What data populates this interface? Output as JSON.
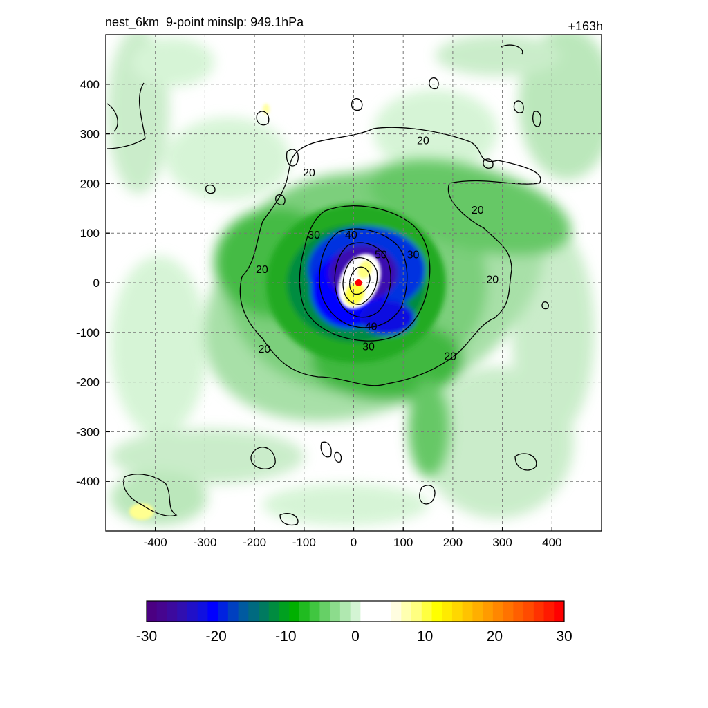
{
  "title_left": "nest_6km  9-point minslp: 949.1hPa",
  "title_right": "+163h",
  "chart_data": {
    "type": "heatmap",
    "title": "nest_6km  9-point minslp: 949.1hPa",
    "time_label": "+163h",
    "xlim": [
      -500,
      500
    ],
    "ylim": [
      -500,
      500
    ],
    "x_ticks": [
      -400,
      -300,
      -200,
      -100,
      0,
      100,
      200,
      300,
      400
    ],
    "y_ticks": [
      400,
      300,
      200,
      100,
      0,
      -100,
      -200,
      -300,
      -400
    ],
    "grid": true,
    "center_marker": {
      "x": 10,
      "y": 0,
      "color": "#ff0000"
    },
    "contour_labels": [
      {
        "text": "20",
        "x": 140,
        "y": 285
      },
      {
        "text": "20",
        "x": -90,
        "y": 220
      },
      {
        "text": "20",
        "x": 250,
        "y": 145
      },
      {
        "text": "20",
        "x": 280,
        "y": 5
      },
      {
        "text": "20",
        "x": -185,
        "y": 25
      },
      {
        "text": "20",
        "x": -180,
        "y": -135
      },
      {
        "text": "20",
        "x": 195,
        "y": -150
      },
      {
        "text": "30",
        "x": -80,
        "y": 95
      },
      {
        "text": "30",
        "x": 120,
        "y": 55
      },
      {
        "text": "30",
        "x": 30,
        "y": -130
      },
      {
        "text": "40",
        "x": -5,
        "y": 95
      },
      {
        "text": "40",
        "x": 35,
        "y": -90
      },
      {
        "text": "50",
        "x": 55,
        "y": 55
      }
    ],
    "colorbar": {
      "ticks": [
        -30,
        -20,
        -10,
        0,
        10,
        20,
        30
      ],
      "range": [
        -30,
        30
      ],
      "colors": [
        "#4b0082",
        "#46058f",
        "#3c0a9e",
        "#300fb0",
        "#2010c8",
        "#1010e0",
        "#0000ff",
        "#0022e0",
        "#0040c0",
        "#005aa0",
        "#006a80",
        "#007a60",
        "#008c40",
        "#00a020",
        "#00b000",
        "#20bb20",
        "#40c640",
        "#66d066",
        "#8cdc8c",
        "#b0e8b0",
        "#d4f4d4",
        "#ffffff",
        "#ffffff",
        "#ffffff",
        "#fffde0",
        "#ffffb0",
        "#ffff80",
        "#ffff40",
        "#ffff00",
        "#ffeb00",
        "#ffd700",
        "#ffc300",
        "#ffaf00",
        "#ff9b00",
        "#ff8700",
        "#ff7300",
        "#ff5f00",
        "#ff4b00",
        "#ff3200",
        "#ff1a00",
        "#ff0000"
      ]
    }
  }
}
